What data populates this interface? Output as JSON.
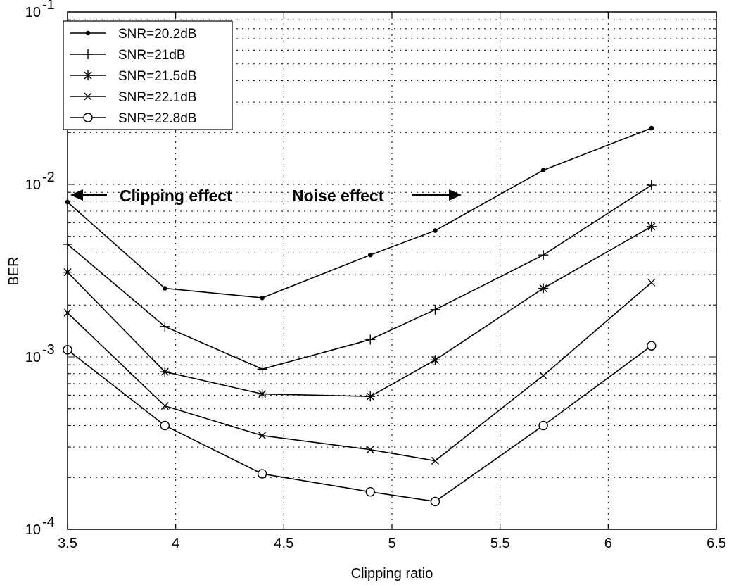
{
  "chart_data": {
    "type": "line",
    "title": "",
    "xlabel": "Clipping ratio",
    "ylabel": "BER",
    "x_scale": "linear",
    "y_scale": "log",
    "xlim": [
      3.5,
      6.5
    ],
    "ylim": [
      0.0001,
      0.1
    ],
    "x_ticks": [
      "3.5",
      "4",
      "4.5",
      "5",
      "5.5",
      "6",
      "6.5"
    ],
    "y_ticks": [
      {
        "base": "10",
        "exp": "-4"
      },
      {
        "base": "10",
        "exp": "-3"
      },
      {
        "base": "10",
        "exp": "-2"
      },
      {
        "base": "10",
        "exp": "-1"
      }
    ],
    "grid": true,
    "legend_position": "top-left",
    "x": [
      3.5,
      3.95,
      4.4,
      4.9,
      5.2,
      5.7,
      6.2
    ],
    "series": [
      {
        "name": "SNR=20.2dB",
        "marker": "dot",
        "values": [
          0.0079,
          0.0025,
          0.0022,
          0.0039,
          0.0054,
          0.0121,
          0.0212
        ]
      },
      {
        "name": "SNR=21dB",
        "marker": "plus",
        "values": [
          0.0045,
          0.0015,
          0.00085,
          0.00126,
          0.00188,
          0.0039,
          0.0099
        ]
      },
      {
        "name": "SNR=21.5dB",
        "marker": "star",
        "values": [
          0.0031,
          0.00082,
          0.00061,
          0.00059,
          0.00096,
          0.0025,
          0.0057
        ]
      },
      {
        "name": "SNR=22.1dB",
        "marker": "x",
        "values": [
          0.0018,
          0.00052,
          0.00035,
          0.00029,
          0.00025,
          0.00078,
          0.0027
        ]
      },
      {
        "name": "SNR=22.8dB",
        "marker": "circle",
        "values": [
          0.0011,
          0.0004,
          0.00021,
          0.000165,
          0.000145,
          0.0004,
          0.00116
        ]
      }
    ],
    "annotations": [
      {
        "text": "Clipping effect",
        "arrow": "left"
      },
      {
        "text": "Noise effect",
        "arrow": "right"
      }
    ]
  }
}
